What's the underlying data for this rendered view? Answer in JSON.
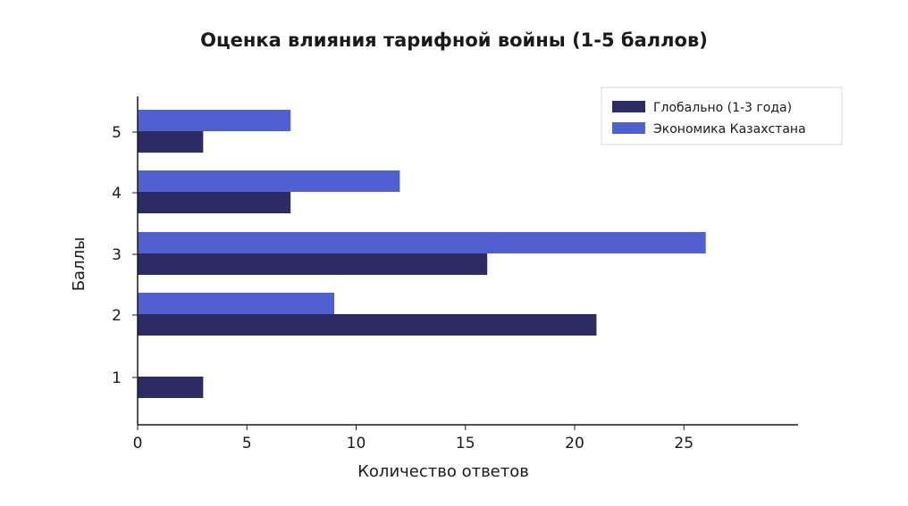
{
  "chart_data": {
    "type": "bar",
    "orientation": "horizontal",
    "title": "Оценка влияния тарифной войны (1-5 баллов)",
    "xlabel": "Количество ответов",
    "ylabel": "Баллы",
    "categories": [
      "1",
      "2",
      "3",
      "4",
      "5"
    ],
    "xlim": [
      0,
      30
    ],
    "xticks": [
      "0",
      "5",
      "10",
      "15",
      "20",
      "25"
    ],
    "series": [
      {
        "name": "Глобально (1-3 года)",
        "color": "#2d2b63",
        "values": [
          3,
          21,
          16,
          7,
          3
        ]
      },
      {
        "name": "Экономика Казахстана",
        "color": "#5060d0",
        "values": [
          0,
          9,
          26,
          12,
          7
        ]
      }
    ],
    "legend": "top-right",
    "grid": false
  }
}
